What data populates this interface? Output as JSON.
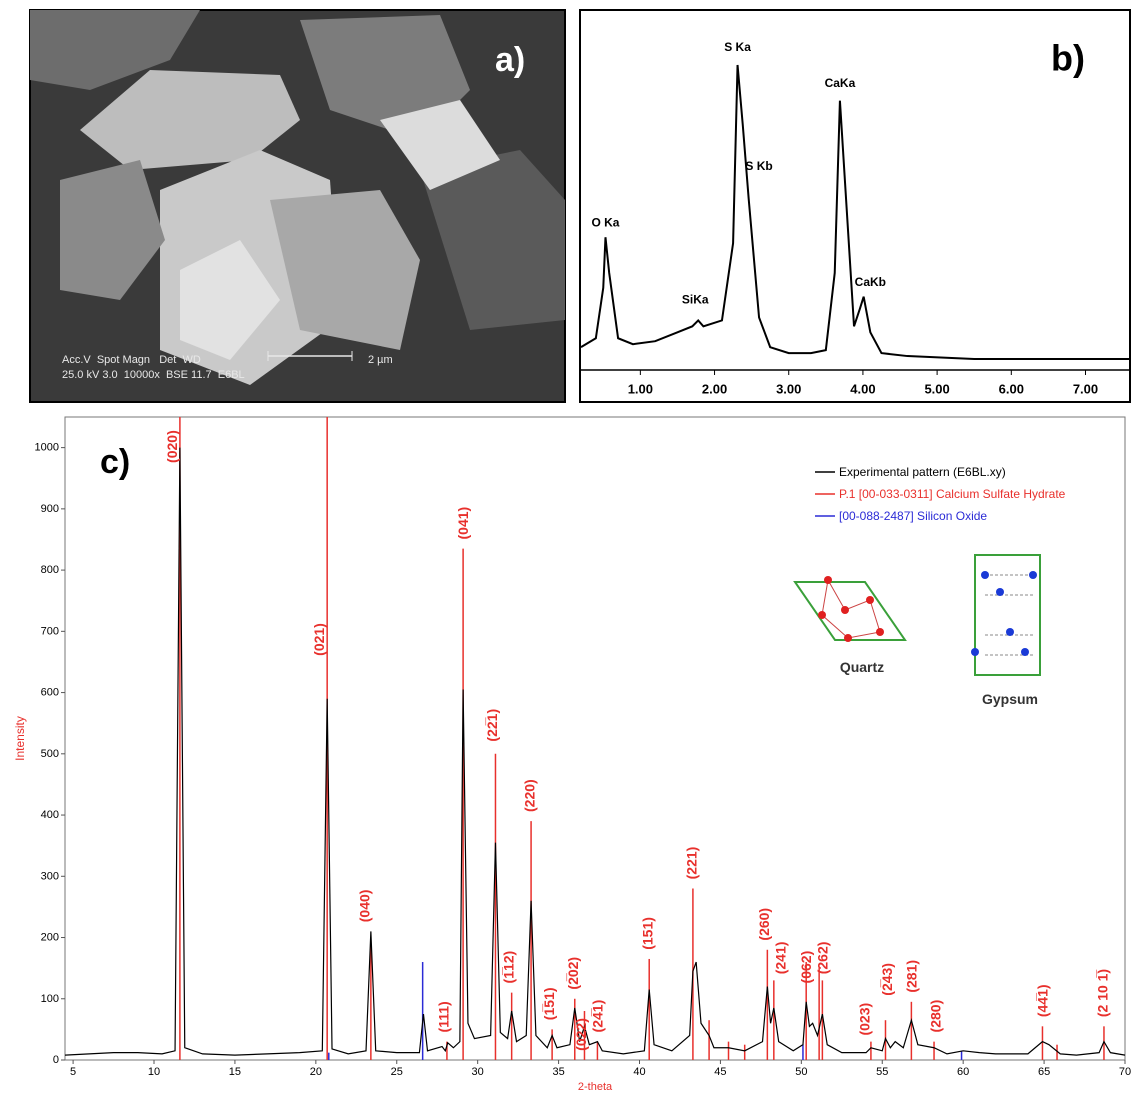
{
  "panel_a": {
    "label": "a)",
    "scale_bar": "2 µm",
    "info_header": "Acc.V  Spot Magn   Det  WD",
    "info_values": "25.0 kV 3.0  10000x  BSE 11.7  E6BL"
  },
  "chart_data": [
    {
      "type": "line",
      "panel_label": "b)",
      "series": [
        {
          "color": "#000000",
          "x": [
            0.2,
            0.4,
            0.5,
            0.53,
            0.58,
            0.7,
            0.9,
            1.2,
            1.5,
            1.7,
            1.78,
            1.85,
            2.1,
            2.25,
            2.31,
            2.38,
            2.46,
            2.6,
            2.75,
            3.0,
            3.3,
            3.5,
            3.62,
            3.69,
            3.76,
            3.88,
            3.96,
            4.01,
            4.1,
            4.25,
            4.6,
            5.5,
            6.5,
            7.6
          ],
          "values": [
            5,
            8,
            25,
            42,
            30,
            8,
            6,
            7,
            10,
            12,
            14,
            12,
            14,
            40,
            100,
            80,
            55,
            15,
            5,
            3,
            3,
            4,
            30,
            88,
            60,
            12,
            18,
            22,
            10,
            3,
            2,
            1,
            1,
            1
          ]
        }
      ],
      "annotations": [
        {
          "text": "O Ka",
          "x": 0.53,
          "y": 47
        },
        {
          "text": "SiKa",
          "x": 1.74,
          "y": 21
        },
        {
          "text": "S Ka",
          "x": 2.31,
          "y": 106
        },
        {
          "text": "S Kb",
          "x": 2.6,
          "y": 66
        },
        {
          "text": "CaKa",
          "x": 3.69,
          "y": 94
        },
        {
          "text": "CaKb",
          "x": 4.1,
          "y": 27
        }
      ],
      "xlim": [
        0.2,
        7.6
      ],
      "ylim": [
        0,
        100
      ],
      "xticks": [
        {
          "value": 1,
          "label": "1.00"
        },
        {
          "value": 2,
          "label": "2.00"
        },
        {
          "value": 3,
          "label": "3.00"
        },
        {
          "value": 4,
          "label": "4.00"
        },
        {
          "value": 5,
          "label": "5.00"
        },
        {
          "value": 6,
          "label": "6.00"
        },
        {
          "value": 7,
          "label": "7.00"
        }
      ]
    },
    {
      "type": "xrd",
      "panel_label": "c)",
      "xlabel": "2-theta",
      "ylabel": "Intensity",
      "label_color": "#e8302c",
      "xlim": [
        4.5,
        70
      ],
      "ylim": [
        0,
        1050
      ],
      "xticks": [
        5,
        10,
        15,
        20,
        25,
        30,
        35,
        40,
        45,
        50,
        55,
        60,
        65,
        70
      ],
      "yticks": [
        0,
        100,
        200,
        300,
        400,
        500,
        600,
        700,
        800,
        900,
        1000
      ],
      "legend": "upper right",
      "series": [
        {
          "name": "Experimental pattern (E6BL.xy)",
          "color": "#000000",
          "kind": "line",
          "x": [
            4.5,
            6,
            7.5,
            9,
            10.5,
            11.3,
            11.6,
            11.9,
            13,
            15,
            17,
            19,
            20.4,
            20.7,
            21.0,
            22,
            23.1,
            23.4,
            23.7,
            25,
            26.4,
            26.65,
            26.9,
            27.8,
            28.0,
            28.15,
            28.5,
            28.9,
            29.1,
            29.4,
            29.8,
            30.8,
            31.1,
            31.4,
            31.85,
            32.1,
            32.4,
            33.0,
            33.3,
            33.6,
            34.3,
            34.6,
            34.9,
            35.7,
            36.0,
            36.3,
            36.6,
            36.9,
            37.4,
            37.7,
            39,
            40.3,
            40.6,
            40.9,
            42,
            43.1,
            43.3,
            43.5,
            43.8,
            44.3,
            44.6,
            45.5,
            46.5,
            47.6,
            47.9,
            48.1,
            48.3,
            48.6,
            49.5,
            50.1,
            50.3,
            50.5,
            50.7,
            51.0,
            51.3,
            51.6,
            52.5,
            54.0,
            54.3,
            55.0,
            55.2,
            55.5,
            55.8,
            56.3,
            56.8,
            57.2,
            58.2,
            59,
            60,
            61,
            62,
            64,
            64.9,
            65.3,
            66,
            67,
            68.4,
            68.7,
            69.1,
            70
          ],
          "values": [
            8,
            10,
            12,
            12,
            10,
            15,
            1000,
            20,
            10,
            8,
            10,
            12,
            15,
            590,
            18,
            10,
            15,
            210,
            15,
            12,
            12,
            75,
            15,
            22,
            15,
            28,
            20,
            30,
            605,
            60,
            35,
            40,
            355,
            45,
            35,
            80,
            30,
            40,
            260,
            40,
            20,
            40,
            20,
            25,
            85,
            30,
            55,
            25,
            30,
            15,
            10,
            15,
            115,
            25,
            15,
            40,
            145,
            160,
            60,
            40,
            20,
            20,
            15,
            30,
            120,
            60,
            85,
            30,
            15,
            25,
            95,
            55,
            60,
            40,
            75,
            25,
            12,
            12,
            20,
            15,
            35,
            20,
            30,
            20,
            65,
            25,
            20,
            10,
            15,
            12,
            10,
            10,
            30,
            25,
            10,
            8,
            12,
            30,
            12,
            8
          ]
        },
        {
          "name": "P.1 [00-033-0311]  Calcium Sulfate Hydrate",
          "color": "#e8302c",
          "kind": "stick",
          "x": [
            11.6,
            20.7,
            23.4,
            28.1,
            29.1,
            31.1,
            32.1,
            33.3,
            34.6,
            36.0,
            36.6,
            37.4,
            40.6,
            43.3,
            44.3,
            45.5,
            46.5,
            47.9,
            48.3,
            50.3,
            51.1,
            51.3,
            54.3,
            55.2,
            56.8,
            58.2,
            64.9,
            65.8,
            68.7
          ],
          "values": [
            1050,
            1050,
            190,
            30,
            835,
            500,
            110,
            390,
            50,
            100,
            80,
            30,
            165,
            280,
            65,
            30,
            25,
            180,
            130,
            160,
            150,
            130,
            30,
            65,
            95,
            30,
            55,
            25,
            55
          ]
        },
        {
          "name": "[00-088-2487]  Silicon Oxide",
          "color": "#2b2bd6",
          "kind": "stick",
          "x": [
            20.8,
            26.6,
            50.1,
            59.9
          ],
          "values": [
            12,
            160,
            25,
            15
          ]
        }
      ],
      "peak_labels": [
        {
          "text": "(020)",
          "x": 11.1,
          "y": 975
        },
        {
          "text": "(021)",
          "x": 20.2,
          "y": 660
        },
        {
          "text": "(040)",
          "x": 23.0,
          "y": 225
        },
        {
          "text": "(111)",
          "x": 27.9,
          "y": 45
        },
        {
          "text": "(041)",
          "x": 29.1,
          "y": 850
        },
        {
          "text": "(22̅1)",
          "x": 30.9,
          "y": 520
        },
        {
          "text": "(1̅12)",
          "x": 31.9,
          "y": 125
        },
        {
          "text": "(220)",
          "x": 33.2,
          "y": 405
        },
        {
          "text": "(1̅51)",
          "x": 34.4,
          "y": 65
        },
        {
          "text": "(2̅02)",
          "x": 35.9,
          "y": 115
        },
        {
          "text": "(022)",
          "x": 36.4,
          "y": 15
        },
        {
          "text": "(24̅1)",
          "x": 37.4,
          "y": 45
        },
        {
          "text": "(151)",
          "x": 40.5,
          "y": 180
        },
        {
          "text": "(221)",
          "x": 43.2,
          "y": 295
        },
        {
          "text": "(260)",
          "x": 47.7,
          "y": 195
        },
        {
          "text": "(241)",
          "x": 48.7,
          "y": 140
        },
        {
          "text": "(062)",
          "x": 50.3,
          "y": 125
        },
        {
          "text": "(262)",
          "x": 51.3,
          "y": 140
        },
        {
          "text": "(023)",
          "x": 53.9,
          "y": 40
        },
        {
          "text": "(2̅43)",
          "x": 55.3,
          "y": 105
        },
        {
          "text": "(281)",
          "x": 56.8,
          "y": 110
        },
        {
          "text": "(280)",
          "x": 58.3,
          "y": 45
        },
        {
          "text": "(44̅1)",
          "x": 64.9,
          "y": 70
        },
        {
          "text": "(2 10 1̅)",
          "x": 68.6,
          "y": 70
        }
      ],
      "insets": [
        {
          "label": "Quartz"
        },
        {
          "label": "Gypsum"
        }
      ]
    }
  ]
}
